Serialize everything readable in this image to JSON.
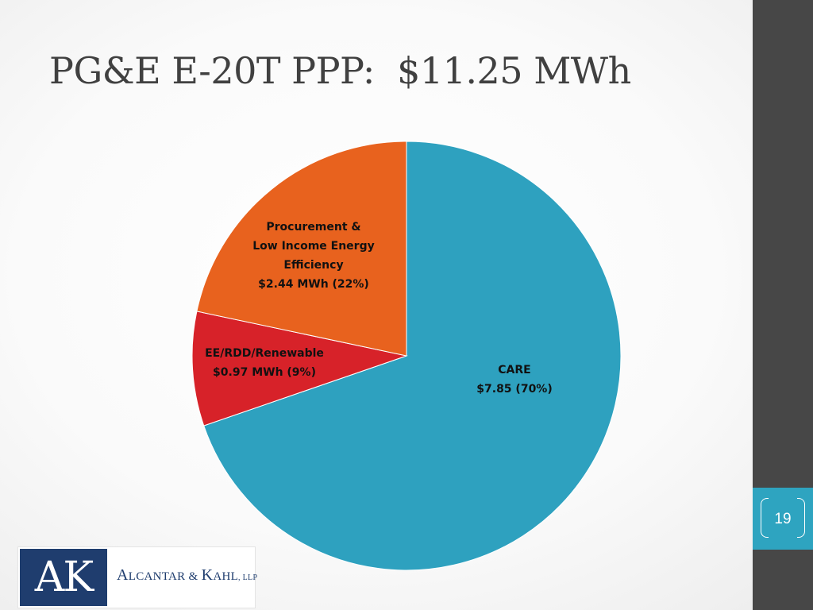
{
  "slide": {
    "title": "PG&E E-20T PPP:  $11.25 MWh",
    "page_number": "19"
  },
  "logo": {
    "mark": "AK",
    "name_big_1": "A",
    "name_sc_1": "LCANTAR & ",
    "name_big_2": "K",
    "name_sc_2": "AHL",
    "name_suffix": ", LLP"
  },
  "colors": {
    "care": "#2ea1bf",
    "ee_rdd_renewable": "#d72229",
    "procurement": "#e8621e",
    "side_bar": "#474747",
    "page_tab": "#2ea4c0",
    "logo_navy": "#1f3d6e"
  },
  "chart_data": {
    "type": "pie",
    "title": "PG&E E-20T PPP:  $11.25 MWh",
    "slices": [
      {
        "name": "CARE",
        "value": 7.85,
        "percent": 70,
        "color": "#2ea1bf",
        "label_lines": [
          "CARE",
          "$7.85 (70%)"
        ]
      },
      {
        "name": "EE/RDD/Renewable",
        "value": 0.97,
        "percent": 9,
        "color": "#d72229",
        "label_lines": [
          "EE/RDD/Renewable",
          "$0.97 MWh (9%)"
        ]
      },
      {
        "name": "Procurement & Low Income Energy Efficiency",
        "value": 2.44,
        "percent": 22,
        "color": "#e8621e",
        "label_lines": [
          "Procurement &",
          "Low Income Energy",
          "Efficiency",
          "$2.44 MWh (22%)"
        ]
      }
    ],
    "start": "12 o'clock",
    "direction": "clockwise",
    "legend": "none"
  }
}
